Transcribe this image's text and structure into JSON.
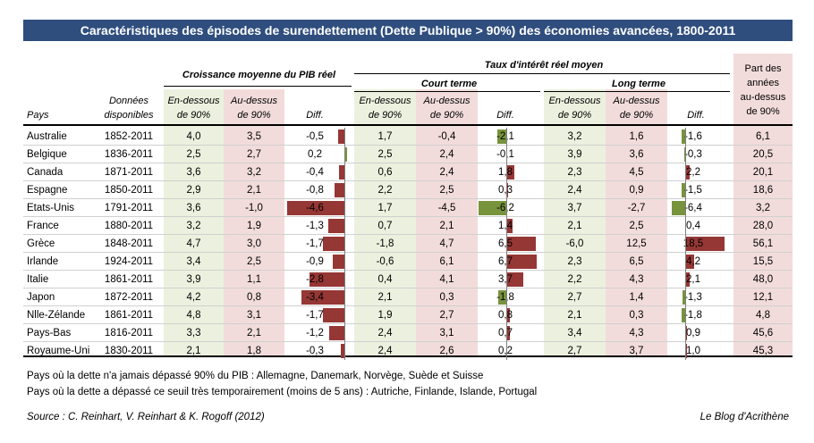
{
  "title": "Caractéristiques des épisodes de surendettement (Dette Publique > 90%) des économies avancées, 1800-2011",
  "headers": {
    "growth_group": "Croissance moyenne du PIB réel",
    "rate_group": "Taux d'intérêt réel moyen",
    "short_term": "Court terme",
    "long_term": "Long terme",
    "share_line1": "Part des",
    "share_line2": "années",
    "share_line3": "au-dessus",
    "share_line4": "de 90%",
    "country": "Pays",
    "period_line1": "Données",
    "period_line2": "disponibles",
    "below_line1": "En-dessous",
    "below_line2": "de 90%",
    "above_line1": "Au-dessus",
    "above_line2": "de 90%",
    "diff": "Diff."
  },
  "chart_data": {
    "type": "table",
    "colors": {
      "title_bg": "#2f4e7e",
      "green_col": "#ebf1de",
      "pink_col": "#f2dcdb",
      "bar_neg": "#953735",
      "bar_pos": "#77933c"
    },
    "rows": [
      {
        "country": "Australie",
        "period": "1852-2011",
        "g_below": "4,0",
        "g_above": "3,5",
        "g_diff": "-0,5",
        "g_diff_v": -0.5,
        "s_below": "1,7",
        "s_above": "-0,4",
        "s_diff": "-2,1",
        "s_diff_v": -2.1,
        "l_below": "3,2",
        "l_above": "1,6",
        "l_diff": "-1,6",
        "l_diff_v": -1.6,
        "share": "6,1"
      },
      {
        "country": "Belgique",
        "period": "1836-2011",
        "g_below": "2,5",
        "g_above": "2,7",
        "g_diff": "0,2",
        "g_diff_v": 0.2,
        "s_below": "2,5",
        "s_above": "2,4",
        "s_diff": "-0,1",
        "s_diff_v": -0.1,
        "l_below": "3,9",
        "l_above": "3,6",
        "l_diff": "-0,3",
        "l_diff_v": -0.3,
        "share": "20,5"
      },
      {
        "country": "Canada",
        "period": "1871-2011",
        "g_below": "3,6",
        "g_above": "3,2",
        "g_diff": "-0,4",
        "g_diff_v": -0.4,
        "s_below": "0,6",
        "s_above": "2,4",
        "s_diff": "1,8",
        "s_diff_v": 1.8,
        "l_below": "2,3",
        "l_above": "4,5",
        "l_diff": "2,2",
        "l_diff_v": 2.2,
        "share": "20,1"
      },
      {
        "country": "Espagne",
        "period": "1850-2011",
        "g_below": "2,9",
        "g_above": "2,1",
        "g_diff": "-0,8",
        "g_diff_v": -0.8,
        "s_below": "2,2",
        "s_above": "2,5",
        "s_diff": "0,3",
        "s_diff_v": 0.3,
        "l_below": "2,4",
        "l_above": "0,9",
        "l_diff": "-1,5",
        "l_diff_v": -1.5,
        "share": "18,6"
      },
      {
        "country": "Etats-Unis",
        "period": "1791-2011",
        "g_below": "3,6",
        "g_above": "-1,0",
        "g_diff": "-4,6",
        "g_diff_v": -4.6,
        "s_below": "1,7",
        "s_above": "-4,5",
        "s_diff": "-6,2",
        "s_diff_v": -6.2,
        "l_below": "3,7",
        "l_above": "-2,7",
        "l_diff": "-6,4",
        "l_diff_v": -6.4,
        "share": "3,2"
      },
      {
        "country": "France",
        "period": "1880-2011",
        "g_below": "3,2",
        "g_above": "1,9",
        "g_diff": "-1,3",
        "g_diff_v": -1.3,
        "s_below": "0,7",
        "s_above": "2,1",
        "s_diff": "1,4",
        "s_diff_v": 1.4,
        "l_below": "2,1",
        "l_above": "2,5",
        "l_diff": "0,4",
        "l_diff_v": 0.4,
        "share": "28,0"
      },
      {
        "country": "Grèce",
        "period": "1848-2011",
        "g_below": "4,7",
        "g_above": "3,0",
        "g_diff": "-1,7",
        "g_diff_v": -1.7,
        "s_below": "-1,8",
        "s_above": "4,7",
        "s_diff": "6,5",
        "s_diff_v": 6.5,
        "l_below": "-6,0",
        "l_above": "12,5",
        "l_diff": "18,5",
        "l_diff_v": 18.5,
        "share": "56,1"
      },
      {
        "country": "Irlande",
        "period": "1924-2011",
        "g_below": "3,4",
        "g_above": "2,5",
        "g_diff": "-0,9",
        "g_diff_v": -0.9,
        "s_below": "-0,6",
        "s_above": "6,1",
        "s_diff": "6,7",
        "s_diff_v": 6.7,
        "l_below": "2,3",
        "l_above": "6,5",
        "l_diff": "4,2",
        "l_diff_v": 4.2,
        "share": "15,5"
      },
      {
        "country": "Italie",
        "period": "1861-2011",
        "g_below": "3,9",
        "g_above": "1,1",
        "g_diff": "-2,8",
        "g_diff_v": -2.8,
        "s_below": "0,4",
        "s_above": "4,1",
        "s_diff": "3,7",
        "s_diff_v": 3.7,
        "l_below": "2,2",
        "l_above": "4,3",
        "l_diff": "2,1",
        "l_diff_v": 2.1,
        "share": "48,0"
      },
      {
        "country": "Japon",
        "period": "1872-2011",
        "g_below": "4,2",
        "g_above": "0,8",
        "g_diff": "-3,4",
        "g_diff_v": -3.4,
        "s_below": "2,1",
        "s_above": "0,3",
        "s_diff": "-1,8",
        "s_diff_v": -1.8,
        "l_below": "2,7",
        "l_above": "1,4",
        "l_diff": "-1,3",
        "l_diff_v": -1.3,
        "share": "12,1"
      },
      {
        "country": "Nlle-Zélande",
        "period": "1861-2011",
        "g_below": "4,8",
        "g_above": "3,1",
        "g_diff": "-1,7",
        "g_diff_v": -1.7,
        "s_below": "1,9",
        "s_above": "2,7",
        "s_diff": "0,8",
        "s_diff_v": 0.8,
        "l_below": "2,1",
        "l_above": "0,3",
        "l_diff": "-1,8",
        "l_diff_v": -1.8,
        "share": "4,8"
      },
      {
        "country": "Pays-Bas",
        "period": "1816-2011",
        "g_below": "3,3",
        "g_above": "2,1",
        "g_diff": "-1,2",
        "g_diff_v": -1.2,
        "s_below": "2,4",
        "s_above": "3,1",
        "s_diff": "0,7",
        "s_diff_v": 0.7,
        "l_below": "3,4",
        "l_above": "4,3",
        "l_diff": "0,9",
        "l_diff_v": 0.9,
        "share": "45,6"
      },
      {
        "country": "Royaume-Uni",
        "period": "1830-2011",
        "g_below": "2,1",
        "g_above": "1,8",
        "g_diff": "-0,3",
        "g_diff_v": -0.3,
        "s_below": "2,4",
        "s_above": "2,6",
        "s_diff": "0,2",
        "s_diff_v": 0.2,
        "l_below": "2,7",
        "l_above": "3,7",
        "l_diff": "1,0",
        "l_diff_v": 1.0,
        "share": "45,3"
      }
    ]
  },
  "notes": {
    "note1": "Pays où la dette n'a jamais dépassé 90% du PIB : Allemagne, Danemark, Norvège, Suède et Suisse",
    "note2": "Pays où la dette a dépassé ce seuil très temporairement (moins de 5 ans) : Autriche, Finlande, Islande, Portugal",
    "source": "Source : C. Reinhart, V. Reinhart & K. Rogoff (2012)",
    "blog": "Le Blog d'Acrithène"
  }
}
